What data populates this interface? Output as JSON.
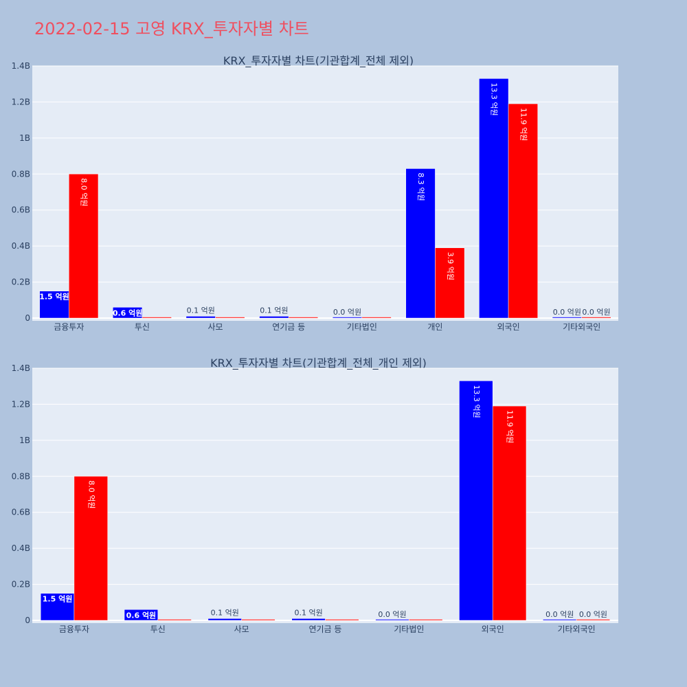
{
  "page": {
    "title": "2022-02-15 고영 KRX_투자자별 차트",
    "title_color": "#ef4f5f",
    "background": "#b0c4de"
  },
  "chart_data": [
    {
      "type": "bar",
      "title": "KRX_투자자별 차트(기관합계_전체 제외)",
      "categories": [
        "금융투자",
        "투신",
        "사모",
        "연기금 등",
        "기타법인",
        "개인",
        "외국인",
        "기타외국인"
      ],
      "series": [
        {
          "color": "#0000ff",
          "values": [
            0.15,
            0.06,
            0.01,
            0.01,
            0.0,
            0.83,
            1.33,
            0.0
          ],
          "labels": [
            "1.5 억원",
            "0.6 억원",
            "0.1 억원",
            "0.1 억원",
            "0.0 억원",
            "8.3 억원",
            "13.3 억원",
            "0.0 억원"
          ]
        },
        {
          "color": "#ff0000",
          "values": [
            0.8,
            0.0,
            0.0,
            0.0,
            0.0,
            0.39,
            1.19,
            0.0
          ],
          "labels": [
            "8.0 억원",
            "",
            "",
            "",
            "",
            "3.9 억원",
            "11.9 억원",
            "0.0 억원"
          ]
        }
      ],
      "ylim": [
        0,
        1.4
      ],
      "yticks": [
        0,
        0.2,
        0.4,
        0.6,
        0.8,
        1.0,
        1.2,
        1.4
      ],
      "ytick_labels": [
        "0",
        "0.2B",
        "0.4B",
        "0.6B",
        "0.8B",
        "1B",
        "1.2B",
        "1.4B"
      ],
      "grid": true
    },
    {
      "type": "bar",
      "title": "KRX_투자자별 차트(기관합계_전체_개인 제외)",
      "categories": [
        "금융투자",
        "투신",
        "사모",
        "연기금 등",
        "기타법인",
        "외국인",
        "기타외국인"
      ],
      "series": [
        {
          "color": "#0000ff",
          "values": [
            0.15,
            0.06,
            0.01,
            0.01,
            0.0,
            1.33,
            0.0
          ],
          "labels": [
            "1.5 억원",
            "0.6 억원",
            "0.1 억원",
            "0.1 억원",
            "0.0 억원",
            "13.3 억원",
            "0.0 억원"
          ]
        },
        {
          "color": "#ff0000",
          "values": [
            0.8,
            0.0,
            0.0,
            0.0,
            0.0,
            1.19,
            0.0
          ],
          "labels": [
            "8.0 억원",
            "",
            "",
            "",
            "",
            "11.9 억원",
            "0.0 억원"
          ]
        }
      ],
      "ylim": [
        0,
        1.4
      ],
      "yticks": [
        0,
        0.2,
        0.4,
        0.6,
        0.8,
        1.0,
        1.2,
        1.4
      ],
      "ytick_labels": [
        "0",
        "0.2B",
        "0.4B",
        "0.6B",
        "0.8B",
        "1B",
        "1.2B",
        "1.4B"
      ],
      "grid": true
    }
  ]
}
